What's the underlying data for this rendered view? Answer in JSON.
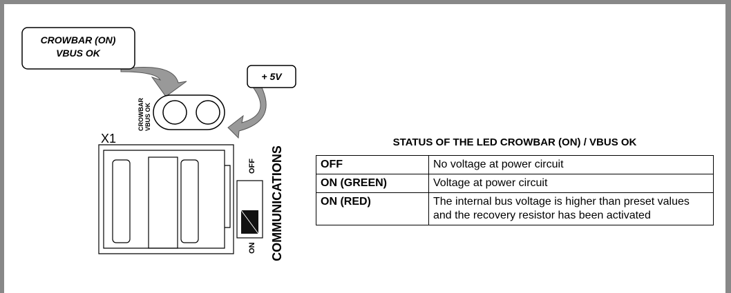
{
  "callouts": [
    [
      "CROWBAR (ON)",
      "VBUS OK"
    ],
    [
      "+ 5V"
    ]
  ],
  "led_labels": [
    "CROWBAR",
    "VBUS OK"
  ],
  "connector": "X1",
  "switch": {
    "off": "OFF",
    "on": "ON",
    "label": "COMMUNICATIONS"
  },
  "table": {
    "title": "STATUS OF THE LED CROWBAR (ON) / VBUS OK",
    "rows": [
      [
        "OFF",
        "No voltage at power circuit"
      ],
      [
        "ON (GREEN)",
        "Voltage at power circuit"
      ],
      [
        "ON (RED)",
        "The internal bus voltage is higher than preset values and the recovery resistor has been activated"
      ]
    ]
  }
}
